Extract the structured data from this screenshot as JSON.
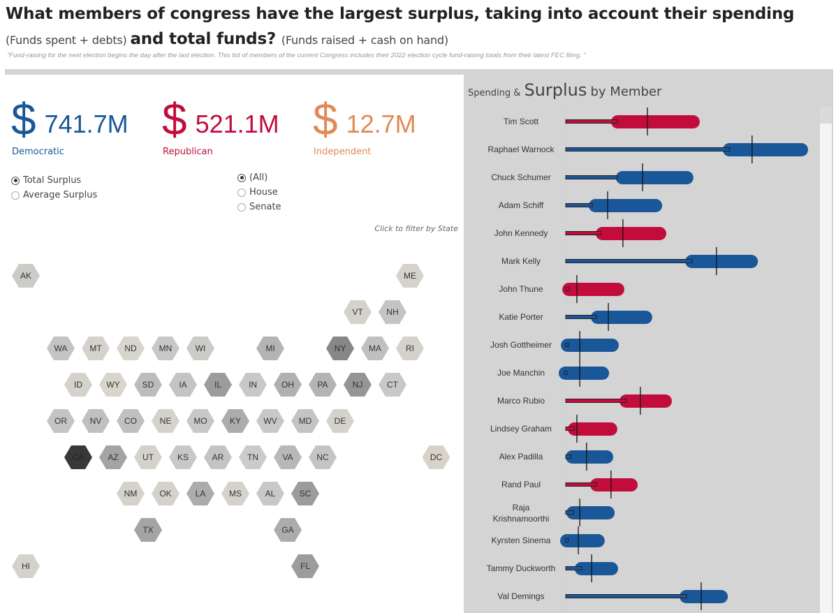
{
  "header": {
    "title_bold_1": "What members of congress have the largest surplus, taking into account their spending ",
    "title_light_1": "(Funds spent + debts) ",
    "title_bold_2": "and total funds? ",
    "title_light_2": "(Funds raised + cash on hand)",
    "quote": "”Fund-raising for the next election begins the day after the last election. This list of members of the current Congress includes their 2022 election cycle fund-raising totals from their latest FEC filing. ”"
  },
  "colors": {
    "democratic": "#1a5799",
    "republican": "#c20d3c",
    "independent": "#e08a57",
    "panel_bg": "#d4d4d4"
  },
  "kpis": [
    {
      "symbol": "$",
      "amount": "741.7M",
      "party": "Democratic"
    },
    {
      "symbol": "$",
      "amount": "521.1M",
      "party": "Republican"
    },
    {
      "symbol": "$",
      "amount": "12.7M",
      "party": "Independent"
    }
  ],
  "measure_filter": {
    "options": [
      {
        "label": "Total Surplus",
        "checked": true
      },
      {
        "label": "Average Surplus",
        "checked": false
      }
    ]
  },
  "chamber_filter": {
    "options": [
      {
        "label": "(All)",
        "checked": true
      },
      {
        "label": "House",
        "checked": false
      },
      {
        "label": "Senate",
        "checked": false
      }
    ]
  },
  "map": {
    "hint": "Click to filter by State",
    "states": [
      {
        "code": "AK",
        "col": 0,
        "row": 0,
        "shade": "#cbcbc8"
      },
      {
        "code": "ME",
        "col": 11,
        "row": 0,
        "shade": "#d4d2cb"
      },
      {
        "code": "VT",
        "col": 9.5,
        "row": 1,
        "shade": "#d4d2cb"
      },
      {
        "code": "NH",
        "col": 10.5,
        "row": 1,
        "shade": "#c4c4c4"
      },
      {
        "code": "WA",
        "col": 1,
        "row": 2,
        "shade": "#c4c4c4"
      },
      {
        "code": "MT",
        "col": 2,
        "row": 2,
        "shade": "#d4d2cb"
      },
      {
        "code": "ND",
        "col": 3,
        "row": 2,
        "shade": "#d7d5cc"
      },
      {
        "code": "MN",
        "col": 4,
        "row": 2,
        "shade": "#c8c8c8"
      },
      {
        "code": "WI",
        "col": 5,
        "row": 2,
        "shade": "#cbcbc8"
      },
      {
        "code": "MI",
        "col": 7,
        "row": 2,
        "shade": "#b4b4b4"
      },
      {
        "code": "NY",
        "col": 9,
        "row": 2,
        "shade": "#878787"
      },
      {
        "code": "MA",
        "col": 10,
        "row": 2,
        "shade": "#c0c0c0"
      },
      {
        "code": "RI",
        "col": 11,
        "row": 2,
        "shade": "#d4d2cb"
      },
      {
        "code": "ID",
        "col": 1.5,
        "row": 3,
        "shade": "#d4d2cb"
      },
      {
        "code": "WY",
        "col": 2.5,
        "row": 3,
        "shade": "#d7d5cc"
      },
      {
        "code": "SD",
        "col": 3.5,
        "row": 3,
        "shade": "#bcbcbc"
      },
      {
        "code": "IA",
        "col": 4.5,
        "row": 3,
        "shade": "#c4c4c4"
      },
      {
        "code": "IL",
        "col": 5.5,
        "row": 3,
        "shade": "#9c9c9c"
      },
      {
        "code": "IN",
        "col": 6.5,
        "row": 3,
        "shade": "#c8c8c8"
      },
      {
        "code": "OH",
        "col": 7.5,
        "row": 3,
        "shade": "#b0b0b0"
      },
      {
        "code": "PA",
        "col": 8.5,
        "row": 3,
        "shade": "#b4b4b4"
      },
      {
        "code": "NJ",
        "col": 9.5,
        "row": 3,
        "shade": "#959595"
      },
      {
        "code": "CT",
        "col": 10.5,
        "row": 3,
        "shade": "#c8c8c8"
      },
      {
        "code": "OR",
        "col": 1,
        "row": 4,
        "shade": "#c4c4c4"
      },
      {
        "code": "NV",
        "col": 2,
        "row": 4,
        "shade": "#c0c0c0"
      },
      {
        "code": "CO",
        "col": 3,
        "row": 4,
        "shade": "#c0c0c0"
      },
      {
        "code": "NE",
        "col": 4,
        "row": 4,
        "shade": "#d4d2cb"
      },
      {
        "code": "MO",
        "col": 5,
        "row": 4,
        "shade": "#c8c8c8"
      },
      {
        "code": "KY",
        "col": 6,
        "row": 4,
        "shade": "#acacac"
      },
      {
        "code": "WV",
        "col": 7,
        "row": 4,
        "shade": "#c8c8c8"
      },
      {
        "code": "MD",
        "col": 8,
        "row": 4,
        "shade": "#c4c4c4"
      },
      {
        "code": "DE",
        "col": 9,
        "row": 4,
        "shade": "#d4d2cb"
      },
      {
        "code": "CA",
        "col": 1.5,
        "row": 5,
        "shade": "#383838"
      },
      {
        "code": "AZ",
        "col": 2.5,
        "row": 5,
        "shade": "#a4a4a4"
      },
      {
        "code": "UT",
        "col": 3.5,
        "row": 5,
        "shade": "#d4d2cb"
      },
      {
        "code": "KS",
        "col": 4.5,
        "row": 5,
        "shade": "#c8c8c8"
      },
      {
        "code": "AR",
        "col": 5.5,
        "row": 5,
        "shade": "#c4c4c4"
      },
      {
        "code": "TN",
        "col": 6.5,
        "row": 5,
        "shade": "#cbcbcb"
      },
      {
        "code": "VA",
        "col": 7.5,
        "row": 5,
        "shade": "#b8b8b8"
      },
      {
        "code": "NC",
        "col": 8.5,
        "row": 5,
        "shade": "#c4c4c4"
      },
      {
        "code": "DC",
        "col": 11.75,
        "row": 5,
        "shade": "#d8d3c8"
      },
      {
        "code": "NM",
        "col": 3,
        "row": 6,
        "shade": "#d4d2cb"
      },
      {
        "code": "OK",
        "col": 4,
        "row": 6,
        "shade": "#d4d2cb"
      },
      {
        "code": "LA",
        "col": 5,
        "row": 6,
        "shade": "#acacac"
      },
      {
        "code": "MS",
        "col": 6,
        "row": 6,
        "shade": "#d4d2cb"
      },
      {
        "code": "AL",
        "col": 7,
        "row": 6,
        "shade": "#c8c8c8"
      },
      {
        "code": "SC",
        "col": 8,
        "row": 6,
        "shade": "#9c9c9c"
      },
      {
        "code": "TX",
        "col": 3.5,
        "row": 7,
        "shade": "#a4a4a4"
      },
      {
        "code": "GA",
        "col": 7.5,
        "row": 7,
        "shade": "#acacac"
      },
      {
        "code": "HI",
        "col": 0,
        "row": 8,
        "shade": "#d4d2cb"
      },
      {
        "code": "FL",
        "col": 8,
        "row": 8,
        "shade": "#9c9c9c"
      }
    ]
  },
  "chart_data": {
    "type": "bar",
    "title": "Spending & Surplus by Member",
    "title_parts": {
      "small": "Spending &",
      "large": "Surplus",
      "medium": "by Member"
    },
    "xlabel": "",
    "ylabel": "",
    "units": "relative scale (0 = axis origin, 100 = right edge of largest bar); no axis ticks shown",
    "xlim": [
      0,
      100
    ],
    "grid": false,
    "legend": "none",
    "encoding": {
      "spending": "thin outlined bar from origin",
      "surplus": "rounded pill bar (start to end)",
      "reference": "vertical black tick"
    },
    "categories": [
      "Tim Scott",
      "Raphael Warnock",
      "Chuck Schumer",
      "Adam Schiff",
      "John Kennedy",
      "Mark Kelly",
      "John Thune",
      "Katie Porter",
      "Josh Gottheimer",
      "Joe Manchin",
      "Marco Rubio",
      "Lindsey Graham",
      "Alex Padilla",
      "Rand Paul",
      "Raja Krishnamoorthi",
      "Kyrsten Sinema",
      "Tammy Duckworth",
      "Val Demings"
    ],
    "party": [
      "R",
      "D",
      "D",
      "D",
      "R",
      "D",
      "R",
      "D",
      "D",
      "D",
      "R",
      "R",
      "D",
      "R",
      "D",
      "D",
      "D",
      "D"
    ],
    "series": [
      {
        "name": "Spending",
        "values": [
          21.3,
          67.7,
          21.3,
          11.0,
          14.7,
          52.2,
          1.4,
          12.7,
          0.9,
          -0.6,
          25.1,
          3.7,
          2.3,
          12.7,
          3.2,
          0.3,
          6.6,
          49.9
        ]
      },
      {
        "name": "Surplus start",
        "values": [
          18.7,
          64.8,
          20.7,
          9.5,
          12.4,
          49.3,
          -1.4,
          10.4,
          -2.0,
          -2.9,
          22.2,
          0.9,
          0.0,
          10.1,
          0.3,
          -2.3,
          3.7,
          47.0
        ]
      },
      {
        "name": "Surplus end",
        "values": [
          55.3,
          100.0,
          52.7,
          39.8,
          41.5,
          79.3,
          24.2,
          35.7,
          21.9,
          17.9,
          43.8,
          21.3,
          19.6,
          29.7,
          20.2,
          16.1,
          21.6,
          66.9
        ]
      },
      {
        "name": "Reference",
        "values": [
          33.7,
          76.9,
          31.7,
          17.3,
          23.6,
          62.2,
          4.6,
          17.6,
          5.8,
          5.8,
          30.8,
          4.6,
          8.6,
          18.7,
          5.8,
          5.2,
          10.7,
          55.9
        ]
      }
    ]
  }
}
